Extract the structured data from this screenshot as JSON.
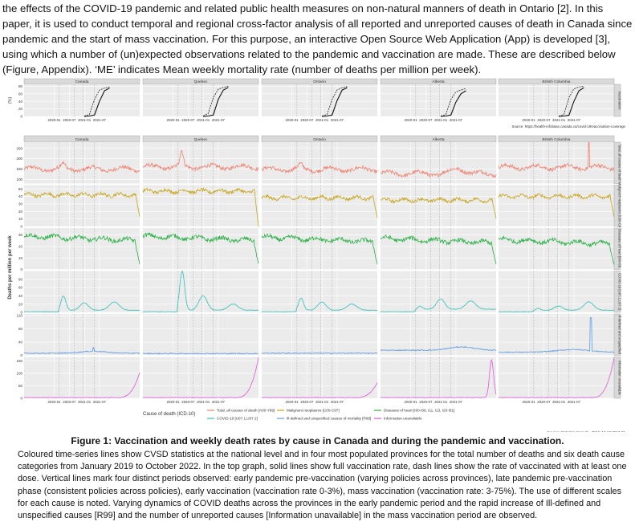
{
  "intro_text": "the effects of the COVID-19 pandemic and related public health measures on non-natural manners of death in Ontario [2]. In this paper, it is used to conduct temporal and regional cross-factor analysis of  all reported and unreported causes of death in Canada since pandemic and the start of mass vaccination. For this  purpose, an interactive Open Source Web Application (App) is developed [3], using which a number of (un)expected observations related to the  pandemic and vaccination are made. These are described below (Figure, Appendix). ‘ME’ indicates Mean weekly mortality rate (number of deaths per million per week).",
  "figure": {
    "regions": [
      "Canada",
      "Quebec",
      "Ontario",
      "Alberta",
      "British Columbia"
    ],
    "x_ticks": [
      "2020-01",
      "2020-07",
      "2021-01",
      "2021-07"
    ],
    "vacc_panel": {
      "ylabel": "(%)",
      "yticks": [
        0,
        20,
        40,
        60,
        80
      ],
      "ymax": 85,
      "strip": "Vaccination",
      "source": "Source: https://health-infobase.canada.ca/covid-19/vaccination-coverage"
    },
    "death_ylabel": "Deaths per million per week",
    "legend_title": "Cause of death (ICD-10)",
    "source": "Source: Statistics Canada - Table 13-10-0810-01",
    "colors": {
      "total": "#f08070",
      "malignant": "#c8a418",
      "heart": "#28b043",
      "covid": "#2ec0b8",
      "illdefined": "#5b9be6",
      "unavailable": "#e058d8"
    },
    "causes": [
      {
        "key": "total",
        "legend": "Total, all causes of death [A00-Y89]",
        "strip": "Total, all causes of death",
        "yticks": [
          100,
          150,
          200,
          250
        ],
        "ymin": 80,
        "ymax": 280
      },
      {
        "key": "malignant",
        "legend": "Malignant neoplasms [C00-C97]",
        "strip": "Malignant neoplasms [C00-C97]",
        "yticks": [
          0,
          10,
          20,
          30,
          40,
          50
        ],
        "ymin": 0,
        "ymax": 55
      },
      {
        "key": "heart",
        "legend": "Diseases of heart [I00-I09, I11, I13, I20-I51]",
        "strip": "Diseases of heart [I00-I09, I11, I13, I20-I51]",
        "yticks": [
          0,
          10,
          20,
          30
        ],
        "ymin": 0,
        "ymax": 36
      },
      {
        "key": "covid",
        "legend": "COVID-19 [U07.1,U07.2]",
        "strip": "COVID-19 [U07.1,U07.2]",
        "yticks": [
          0,
          20,
          40,
          60,
          80
        ],
        "ymin": 0,
        "ymax": 100
      },
      {
        "key": "illdefined",
        "legend": "Ill-defined and unspecified causes of mortality [R99]",
        "strip": "Ill-defined and unspecified causes of mortality [R99]",
        "yticks": [
          0,
          40,
          80,
          120
        ],
        "ymin": 0,
        "ymax": 125
      },
      {
        "key": "unavailable",
        "legend": "Information unavailable",
        "strip": "Information unavailable",
        "yticks": [
          0,
          50,
          100,
          150
        ],
        "ymin": 0,
        "ymax": 165
      }
    ]
  },
  "chart_data": {
    "type": "line",
    "title": "",
    "xlabel": "",
    "ylabel": "Deaths per million per week",
    "x_range": [
      "2019-01",
      "2022-10"
    ],
    "regions": [
      "Canada",
      "Quebec",
      "Ontario",
      "Alberta",
      "British Columbia"
    ],
    "vaccination_percent": {
      "description_note": "Solid = full vaccination, dashed = at least one dose",
      "series": [
        {
          "region": "Canada",
          "x": [
            "2021-01",
            "2021-03",
            "2021-05",
            "2021-07",
            "2021-09",
            "2021-11"
          ],
          "one_dose": [
            1,
            5,
            45,
            70,
            75,
            78
          ],
          "full": [
            0,
            1,
            4,
            40,
            68,
            75
          ]
        },
        {
          "region": "Quebec",
          "x": [
            "2021-01",
            "2021-03",
            "2021-05",
            "2021-07",
            "2021-09",
            "2021-11"
          ],
          "one_dose": [
            1,
            8,
            50,
            72,
            77,
            80
          ],
          "full": [
            0,
            1,
            4,
            45,
            70,
            77
          ]
        },
        {
          "region": "Ontario",
          "x": [
            "2021-01",
            "2021-03",
            "2021-05",
            "2021-07",
            "2021-09",
            "2021-11"
          ],
          "one_dose": [
            1,
            5,
            45,
            70,
            76,
            79
          ],
          "full": [
            0,
            1,
            4,
            42,
            70,
            76
          ]
        },
        {
          "region": "Alberta",
          "x": [
            "2021-01",
            "2021-03",
            "2021-05",
            "2021-07",
            "2021-09",
            "2021-11"
          ],
          "one_dose": [
            1,
            5,
            45,
            65,
            70,
            74
          ],
          "full": [
            0,
            1,
            4,
            38,
            60,
            68
          ]
        },
        {
          "region": "British Columbia",
          "x": [
            "2021-01",
            "2021-03",
            "2021-05",
            "2021-07",
            "2021-09",
            "2021-11"
          ],
          "one_dose": [
            1,
            5,
            50,
            73,
            78,
            80
          ],
          "full": [
            0,
            1,
            3,
            40,
            68,
            76
          ]
        }
      ]
    },
    "death_rates_approx": [
      {
        "cause": "Total, all causes of death [A00-Y89]",
        "Canada": 155,
        "Quebec": 160,
        "Ontario": 150,
        "Alberta": 130,
        "British Columbia": 160
      },
      {
        "cause": "Malignant neoplasms [C00-C97]",
        "Canada": 41,
        "Quebec": 46,
        "Ontario": 38,
        "Alberta": 35,
        "British Columbia": 40
      },
      {
        "cause": "Diseases of heart [I00-I09, I11, I13, I20-I51]",
        "Canada": 28,
        "Quebec": 28,
        "Ontario": 28,
        "Alberta": 26,
        "British Columbia": 25
      },
      {
        "cause": "COVID-19 [U07.1,U07.2]",
        "Canada_peak": 35,
        "Quebec_peak": 95,
        "Ontario_peak": 30,
        "Alberta_peak": 25,
        "British Columbia_peak": 20
      },
      {
        "cause": "Ill-defined and unspecified causes of mortality [R99]",
        "Canada": 5,
        "Quebec": 5,
        "Ontario": 5,
        "Alberta": 15,
        "British Columbia_peak": 110
      },
      {
        "cause": "Information unavailable",
        "Canada_end": 100,
        "Quebec_end": 160,
        "Ontario_end": 60,
        "Alberta_end": 150,
        "British Columbia_end": 160
      }
    ]
  },
  "caption": {
    "title": "Figure 1: Vaccination and weekly death rates by cause in Canada and during the pandemic and vaccination.",
    "body": "Coloured time-series lines show CVSD statistics  at the national level and in four most populated provinces for the total  number of deaths and six death cause categories from January 2019 to October 2022. In the top graph, solid lines show full vaccination rate,  dash lines  show the rate of vaccinated with at least one dose. Vertical lines mark four distinct periods observed: early pandemic pre-vaccination (varying policies across provinces), late pandemic pre-vaccination phase (consistent policies across policies), early vaccination (vaccination rate 0-3%), mass vaccination (vaccination rate: 3-75%).  The use of different scales for each cause is noted.  Varying dynamics of COVID deaths across the provinces in the early pandemic period and the rapid increase of Ill-defined and unspecified causes [R99] and the number of unreported causes [Information unavailable] in the mass vaccination period are observed."
  }
}
